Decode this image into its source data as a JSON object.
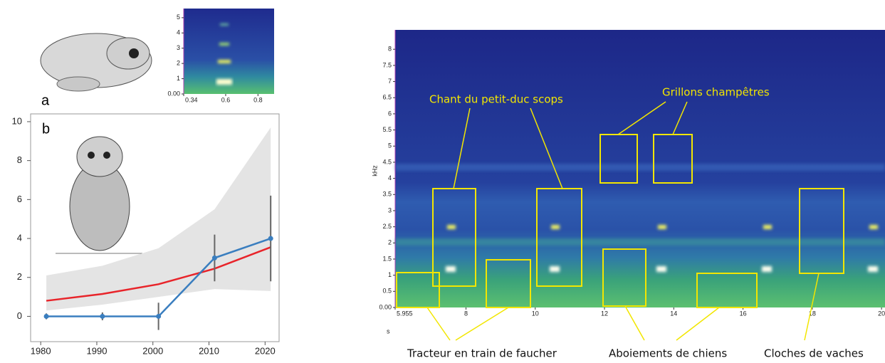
{
  "chart_data": [
    {
      "type": "line",
      "panel_label": "b",
      "x": [
        1981,
        1991,
        2001,
        2011,
        2021
      ],
      "xlim": [
        1978.2,
        2022.5
      ],
      "ylim": [
        -1.3,
        10.4
      ],
      "xticks": [
        1980,
        1990,
        2000,
        2010,
        2020
      ],
      "yticks": [
        0,
        2,
        4,
        6,
        8,
        10
      ],
      "band": {
        "color": "#e4e4e4",
        "lower": [
          0.3,
          0.6,
          1.0,
          1.4,
          1.3
        ],
        "upper": [
          2.1,
          2.6,
          3.5,
          5.5,
          9.7
        ]
      },
      "series": [
        {
          "color": "#e8242a",
          "values": [
            0.8,
            1.15,
            1.65,
            2.45,
            3.55
          ]
        },
        {
          "color": "#3a7ebf",
          "values": [
            0,
            0,
            0,
            3,
            4
          ],
          "errors": [
            0.15,
            0.2,
            0.7,
            1.2,
            2.2
          ]
        }
      ]
    },
    {
      "type": "spectrogram",
      "panel_label": "a",
      "xlim": [
        0.34,
        0.9
      ],
      "ylim": [
        0,
        5.6
      ],
      "xticks": [
        0.34,
        0.6,
        0.8
      ],
      "yticks": [
        {
          "value": 0,
          "label": "0.00"
        },
        1,
        2,
        3,
        4,
        5
      ]
    },
    {
      "type": "spectrogram",
      "xlabel": "s",
      "ylabel": "kHz",
      "xlim": [
        5.955,
        20.1
      ],
      "ylim": [
        0,
        8.6
      ],
      "xticks": [
        5.955,
        8,
        10,
        12,
        14,
        16,
        18,
        20
      ],
      "yticks": [
        {
          "value": 0,
          "label": "0.00"
        },
        0.5,
        1,
        1.5,
        2,
        2.5,
        3,
        3.5,
        4,
        4.5,
        5,
        5.5,
        6,
        6.5,
        7,
        7.5,
        8
      ],
      "annotations": [
        "Chant du petit-duc scops",
        "Grillons champêtres",
        "Tracteur en train de faucher",
        "Aboiements de chiens",
        "Cloches de vaches"
      ]
    }
  ]
}
